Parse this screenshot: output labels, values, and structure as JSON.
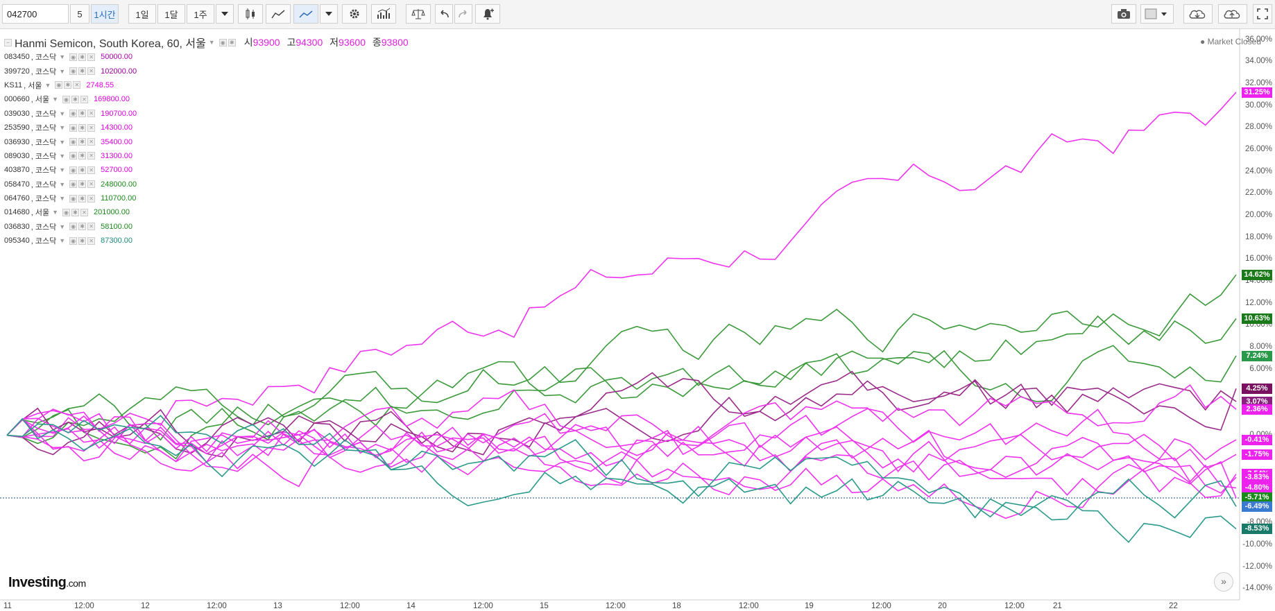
{
  "toolbar": {
    "symbol_value": "042700",
    "interval_input": "5",
    "timeframes": [
      "1시간",
      "1일",
      "1달",
      "1주"
    ]
  },
  "header": {
    "title": "Hanmi Semicon, South Korea, 60, 서울",
    "ohlc": [
      {
        "label": "시",
        "value": "93900"
      },
      {
        "label": "고",
        "value": "94300"
      },
      {
        "label": "저",
        "value": "93600"
      },
      {
        "label": "종",
        "value": "93800"
      }
    ],
    "market_status": "Market Closed"
  },
  "comparisons": [
    {
      "symbol": "083450",
      "exchange": "코스닥",
      "value": "50000.00",
      "color": "#b000b0"
    },
    {
      "symbol": "399720",
      "exchange": "코스닥",
      "value": "102000.00",
      "color": "#9a009a"
    },
    {
      "symbol": "KS11",
      "exchange": "서울",
      "value": "2748.55",
      "color": "#e000e0"
    },
    {
      "symbol": "000660",
      "exchange": "서울",
      "value": "169800.00",
      "color": "#e000e0"
    },
    {
      "symbol": "039030",
      "exchange": "코스닥",
      "value": "190700.00",
      "color": "#e000e0"
    },
    {
      "symbol": "253590",
      "exchange": "코스닥",
      "value": "14300.00",
      "color": "#e000e0"
    },
    {
      "symbol": "036930",
      "exchange": "코스닥",
      "value": "35400.00",
      "color": "#e000e0"
    },
    {
      "symbol": "089030",
      "exchange": "코스닥",
      "value": "31300.00",
      "color": "#e000e0"
    },
    {
      "symbol": "403870",
      "exchange": "코스닥",
      "value": "52700.00",
      "color": "#e000e0"
    },
    {
      "symbol": "058470",
      "exchange": "코스닥",
      "value": "248000.00",
      "color": "#1a8a1a"
    },
    {
      "symbol": "064760",
      "exchange": "코스닥",
      "value": "110700.00",
      "color": "#1a8a1a"
    },
    {
      "symbol": "014680",
      "exchange": "서울",
      "value": "201000.00",
      "color": "#1a8a1a"
    },
    {
      "symbol": "036830",
      "exchange": "코스닥",
      "value": "58100.00",
      "color": "#1a8a1a"
    },
    {
      "symbol": "095340",
      "exchange": "코스닥",
      "value": "87300.00",
      "color": "#1a8a7a"
    }
  ],
  "y_axis": [
    "36.00%",
    "34.00%",
    "32.00%",
    "30.00%",
    "28.00%",
    "26.00%",
    "24.00%",
    "22.00%",
    "20.00%",
    "18.00%",
    "16.00%",
    "14.00%",
    "12.00%",
    "10.00%",
    "8.00%",
    "6.00%",
    "4.00%",
    "2.00%",
    "0.00%",
    "-2.00%",
    "-4.00%",
    "-6.00%",
    "-8.00%",
    "-10.00%",
    "-12.00%",
    "-14.00%"
  ],
  "x_axis": [
    "11",
    "12:00",
    "12",
    "12:00",
    "13",
    "12:00",
    "14",
    "12:00",
    "15",
    "12:00",
    "18",
    "12:00",
    "19",
    "12:00",
    "20",
    "12:00",
    "21",
    "22"
  ],
  "badges": [
    {
      "label": "31.25%",
      "value": 31.25,
      "color": "#ee22ee"
    },
    {
      "label": "14.62%",
      "value": 14.62,
      "color": "#1a7a1a"
    },
    {
      "label": "10.63%",
      "value": 10.63,
      "color": "#1a7a1a"
    },
    {
      "label": "7.24%",
      "value": 7.24,
      "color": "#2a9a4a"
    },
    {
      "label": "4.25%",
      "value": 4.25,
      "color": "#7a1060"
    },
    {
      "label": "3.07%",
      "value": 3.07,
      "color": "#8a2080"
    },
    {
      "label": "2.36%",
      "value": 2.36,
      "color": "#ee22ee"
    },
    {
      "label": "-0.41%",
      "value": -0.41,
      "color": "#ee22ee"
    },
    {
      "label": "-1.75%",
      "value": -1.75,
      "color": "#ee22ee"
    },
    {
      "label": "-3.54%",
      "value": -3.54,
      "color": "#ee22ee"
    },
    {
      "label": "-3.83%",
      "value": -3.83,
      "color": "#ee22ee"
    },
    {
      "label": "-4.80%",
      "value": -4.8,
      "color": "#ee22ee"
    },
    {
      "label": "-5.71%",
      "value": -5.71,
      "color": "#1a8a1a"
    },
    {
      "label": "-6.49%",
      "value": -6.49,
      "color": "#3a7ad0"
    },
    {
      "label": "-8.53%",
      "value": -8.53,
      "color": "#1a7a6a"
    }
  ],
  "logo": {
    "brand": "Investing",
    "suffix": ".com"
  },
  "series_colors": {
    "magenta": "#ee33ee",
    "purple": "#9a2a8a",
    "green": "#3a9a3a",
    "teal": "#2a9a8a"
  }
}
